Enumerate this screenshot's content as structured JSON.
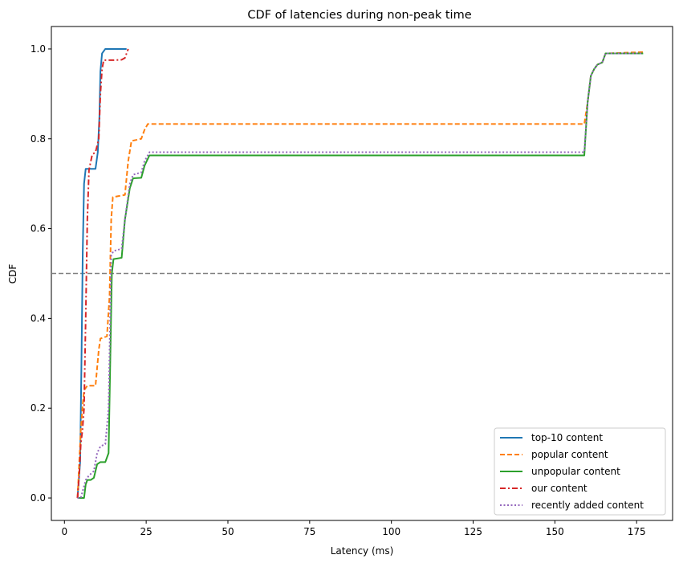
{
  "chart_data": {
    "type": "line",
    "title": "CDF of latencies during non-peak time",
    "xlabel": "Latency (ms)",
    "ylabel": "CDF",
    "xlim": [
      -4,
      186
    ],
    "ylim": [
      -0.05,
      1.05
    ],
    "xticks": [
      0,
      25,
      50,
      75,
      100,
      125,
      150,
      175
    ],
    "yticks": [
      0.0,
      0.2,
      0.4,
      0.6,
      0.8,
      1.0
    ],
    "xtick_labels": [
      "0",
      "25",
      "50",
      "75",
      "100",
      "125",
      "150",
      "175"
    ],
    "ytick_labels": [
      "0.0",
      "0.2",
      "0.4",
      "0.6",
      "0.8",
      "1.0"
    ],
    "reference_line": {
      "y": 0.5,
      "color": "#808080",
      "style": "dashed"
    },
    "legend_position": "lower-right",
    "series": [
      {
        "name": "top-10 content",
        "color": "#1f77b4",
        "style": "solid",
        "x": [
          4,
          4.8,
          5.2,
          5.6,
          6.0,
          6.5,
          7.0,
          9.5,
          10.2,
          10.7,
          11.0,
          11.5,
          12.5,
          15,
          17,
          19
        ],
        "y": [
          0.0,
          0.08,
          0.3,
          0.55,
          0.7,
          0.733,
          0.733,
          0.733,
          0.77,
          0.85,
          0.95,
          0.99,
          1.0,
          1.0,
          1.0,
          1.0
        ]
      },
      {
        "name": "popular content",
        "color": "#ff7f0e",
        "style": "dashed",
        "x": [
          4,
          5,
          5.5,
          6,
          7,
          9.5,
          10.5,
          11,
          13,
          13.8,
          14.3,
          14.8,
          18.5,
          19.5,
          20.5,
          23.5,
          24.5,
          25.5,
          159,
          160,
          161,
          162,
          163,
          164.5,
          165.5,
          177
        ],
        "y": [
          0.0,
          0.15,
          0.2,
          0.24,
          0.25,
          0.25,
          0.33,
          0.355,
          0.36,
          0.45,
          0.62,
          0.67,
          0.675,
          0.75,
          0.795,
          0.8,
          0.82,
          0.833,
          0.833,
          0.88,
          0.94,
          0.955,
          0.965,
          0.97,
          0.99,
          0.993
        ]
      },
      {
        "name": "unpopular content",
        "color": "#2ca02c",
        "style": "solid",
        "x": [
          4,
          6,
          6.5,
          7,
          8,
          9,
          10,
          11,
          12.5,
          13.5,
          14,
          14.5,
          15,
          17.5,
          18.5,
          20,
          21,
          23.5,
          24.5,
          26,
          159,
          160,
          161,
          162,
          163,
          164.5,
          165.5,
          177
        ],
        "y": [
          0.0,
          0.0,
          0.03,
          0.04,
          0.04,
          0.045,
          0.075,
          0.08,
          0.08,
          0.1,
          0.3,
          0.5,
          0.532,
          0.535,
          0.62,
          0.69,
          0.712,
          0.713,
          0.74,
          0.763,
          0.763,
          0.88,
          0.94,
          0.955,
          0.965,
          0.97,
          0.99,
          0.99
        ]
      },
      {
        "name": "our content",
        "color": "#d62728",
        "style": "dashdot",
        "x": [
          4,
          4.5,
          5,
          5.5,
          6,
          6.5,
          7.0,
          7.5,
          8.5,
          9.5,
          10.5,
          11.0,
          11.5,
          12.0,
          12.5,
          15,
          17.5,
          18.5,
          19.5
        ],
        "y": [
          0.0,
          0.05,
          0.12,
          0.15,
          0.2,
          0.4,
          0.62,
          0.73,
          0.765,
          0.77,
          0.8,
          0.9,
          0.955,
          0.975,
          0.975,
          0.975,
          0.976,
          0.98,
          1.0
        ]
      },
      {
        "name": "recently added content",
        "color": "#9467bd",
        "style": "dotted",
        "x": [
          4,
          5,
          6.5,
          7.5,
          9,
          10,
          11,
          12.5,
          13.5,
          14.3,
          15,
          17.5,
          18.5,
          20,
          21,
          23.5,
          24.5,
          26,
          159,
          160,
          161,
          162,
          163,
          164.5,
          165.5,
          177
        ],
        "y": [
          0.0,
          0.0,
          0.04,
          0.05,
          0.06,
          0.1,
          0.115,
          0.12,
          0.2,
          0.54,
          0.55,
          0.555,
          0.62,
          0.7,
          0.72,
          0.725,
          0.75,
          0.77,
          0.77,
          0.88,
          0.94,
          0.955,
          0.965,
          0.97,
          0.99,
          0.99
        ]
      }
    ]
  }
}
